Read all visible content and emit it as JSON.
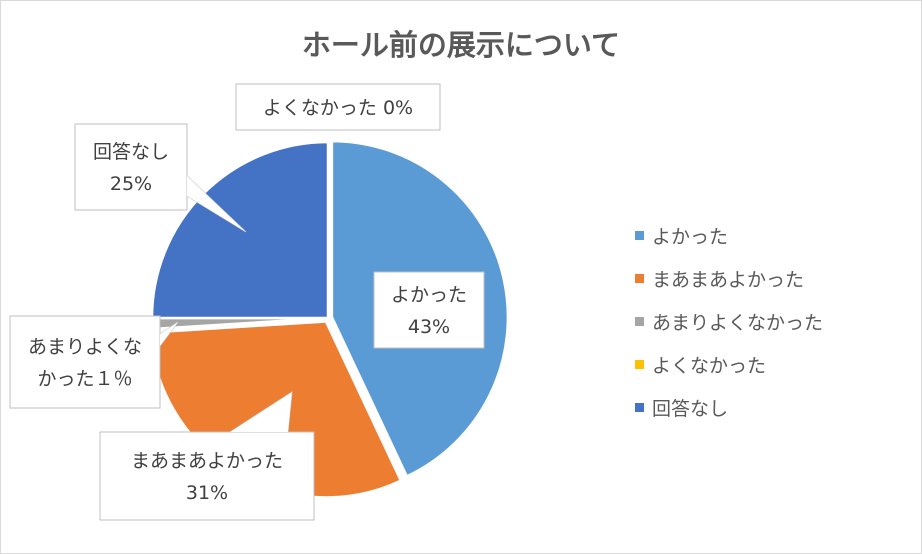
{
  "chart_data": {
    "type": "pie",
    "title": "ホール前の展示について",
    "slices": [
      {
        "name": "よかった",
        "value": 43,
        "color": "#5b9bd5",
        "label_lines": [
          "よかった",
          "43%"
        ]
      },
      {
        "name": "まあまあよかった",
        "value": 31,
        "color": "#ed7d31",
        "label_lines": [
          "まあまあよかった",
          "31%"
        ]
      },
      {
        "name": "あまりよくなかった",
        "value": 1,
        "color": "#a5a5a5",
        "label_lines": [
          "あまりよくな",
          "かった１％"
        ]
      },
      {
        "name": "よくなかった",
        "value": 0,
        "color": "#ffc000",
        "label_lines": [
          "よくなかった 0%"
        ]
      },
      {
        "name": "回答なし",
        "value": 25,
        "color": "#4472c4",
        "label_lines": [
          "回答なし",
          "25%"
        ]
      }
    ],
    "legend_position": "right"
  }
}
